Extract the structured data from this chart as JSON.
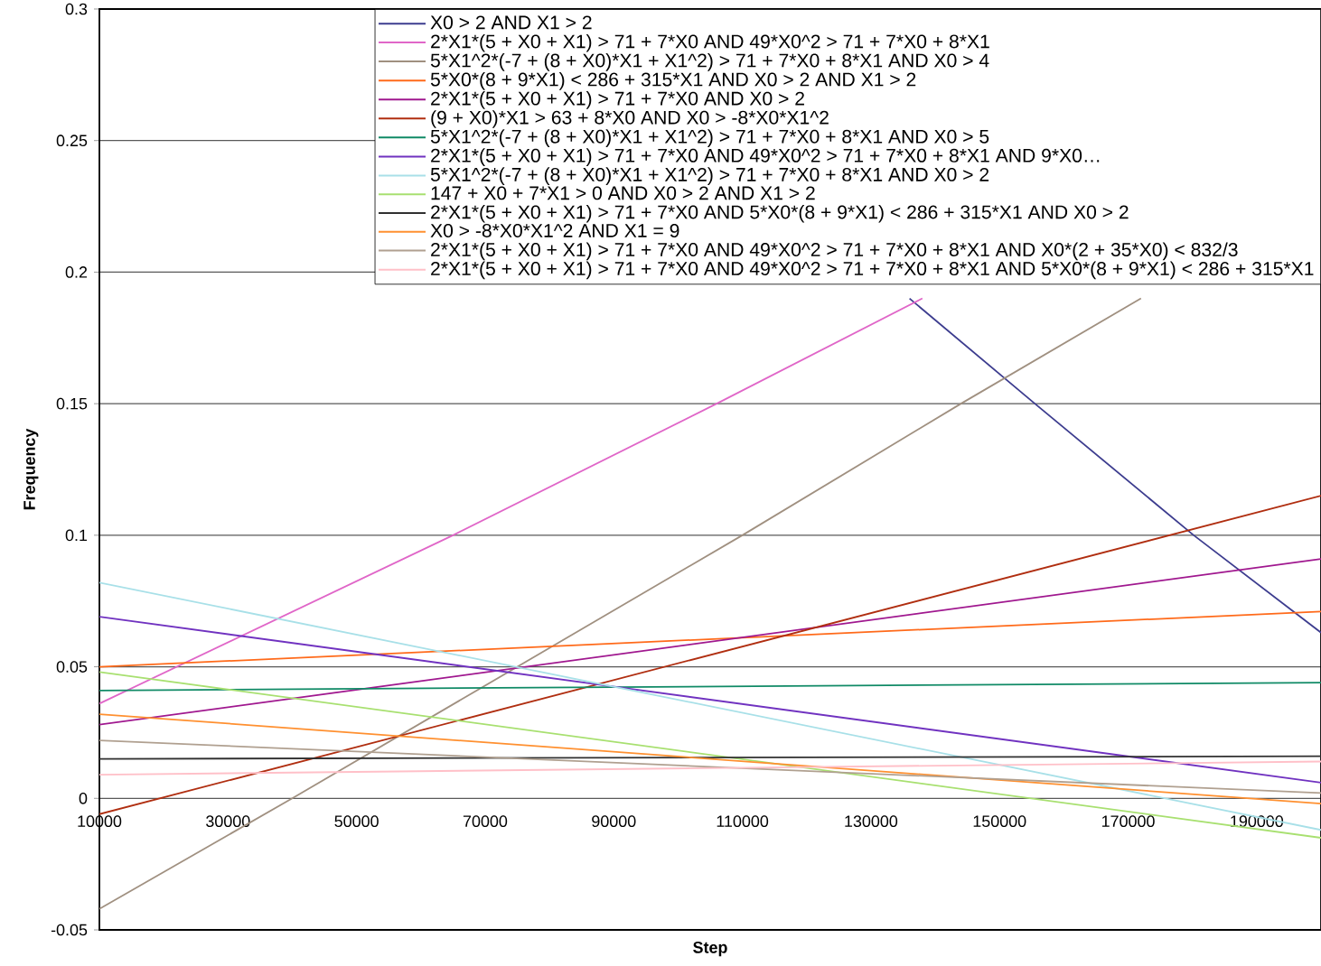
{
  "chart_data": {
    "type": "line",
    "xlabel": "Step",
    "ylabel": "Frequency",
    "xlim": [
      10000,
      200000
    ],
    "ylim": [
      -0.05,
      0.3
    ],
    "xticks": [
      10000,
      30000,
      50000,
      70000,
      90000,
      110000,
      130000,
      150000,
      170000,
      190000
    ],
    "yticks": [
      -0.05,
      0,
      0.05,
      0.1,
      0.15,
      0.2,
      0.25,
      0.3
    ],
    "grid": "y",
    "legend": "top right",
    "marker": "none",
    "line_style": "solid",
    "series": [
      {
        "name": "X0 > 2 AND X1 > 2",
        "color": "#3d3d8f",
        "x": [
          136000,
          155500,
          180200,
          200000
        ],
        "values": [
          0.19,
          0.15,
          0.1,
          0.063
        ]
      },
      {
        "name": "2*X1*(5 + X0 + X1) > 71 + 7*X0 AND 49*X0^2 > 71 + 7*X0 + 8*X1",
        "color": "#e066c8",
        "x": [
          10000,
          65000,
          106000,
          138000
        ],
        "values": [
          0.036,
          0.1,
          0.15,
          0.19
        ]
      },
      {
        "name": "5*X1^2*(-7 + (8 + X0)*X1 + X1^2) > 71 + 7*X0 + 8*X1 AND X0 > 4",
        "color": "#a09080",
        "x": [
          10000,
          40000,
          110000,
          144000,
          172000
        ],
        "values": [
          -0.042,
          0,
          0.1,
          0.15,
          0.19
        ]
      },
      {
        "name": "5*X0*(8 + 9*X1) < 286 + 315*X1 AND X0 > 2 AND X1 > 2",
        "color": "#ff6a1a",
        "x": [
          10000,
          200000
        ],
        "values": [
          0.05,
          0.071
        ]
      },
      {
        "name": "2*X1*(5 + X0 + X1) > 71 + 7*X0 AND X0 > 2",
        "color": "#a0188f",
        "x": [
          10000,
          200000
        ],
        "values": [
          0.028,
          0.091
        ]
      },
      {
        "name": "(9 + X0)*X1 > 63 + 8*X0 AND X0 > -8*X0*X1^2",
        "color": "#b02e10",
        "x": [
          10000,
          200000
        ],
        "values": [
          -0.006,
          0.115
        ]
      },
      {
        "name": "5*X1^2*(-7 + (8 + X0)*X1 + X1^2) > 71 + 7*X0 + 8*X1 AND X0 > 5",
        "color": "#108a66",
        "x": [
          10000,
          200000
        ],
        "values": [
          0.041,
          0.044
        ]
      },
      {
        "name": "2*X1*(5 + X0 + X1) > 71 + 7*X0 AND 49*X0^2 > 71 + 7*X0 + 8*X1 AND 9*X0…",
        "color": "#7032c0",
        "x": [
          10000,
          200000
        ],
        "values": [
          0.069,
          0.006
        ]
      },
      {
        "name": "5*X1^2*(-7 + (8 + X0)*X1 + X1^2) > 71 + 7*X0 + 8*X1 AND X0 > 2",
        "color": "#a8e0e8",
        "x": [
          10000,
          200000
        ],
        "values": [
          0.082,
          -0.012
        ]
      },
      {
        "name": "147 + X0 + 7*X1 > 0 AND X0 > 2 AND X1 > 2",
        "color": "#a8e070",
        "x": [
          10000,
          200000
        ],
        "values": [
          0.048,
          -0.015
        ]
      },
      {
        "name": "2*X1*(5 + X0 + X1) > 71 + 7*X0 AND 5*X0*(8 + 9*X1) < 286 + 315*X1 AND X0 > 2",
        "color": "#303030",
        "x": [
          10000,
          200000
        ],
        "values": [
          0.015,
          0.016
        ]
      },
      {
        "name": "X0 > -8*X0*X1^2 AND X1 = 9",
        "color": "#ff9030",
        "x": [
          10000,
          200000
        ],
        "values": [
          0.032,
          -0.002
        ]
      },
      {
        "name": "2*X1*(5 + X0 + X1) > 71 + 7*X0 AND 49*X0^2 > 71 + 7*X0 + 8*X1 AND X0*(2 + 35*X0) < 832/3",
        "color": "#b0a090",
        "x": [
          10000,
          200000
        ],
        "values": [
          0.022,
          0.002
        ]
      },
      {
        "name": "2*X1*(5 + X0 + X1) > 71 + 7*X0 AND 49*X0^2 > 71 + 7*X0 + 8*X1 AND 5*X0*(8 + 9*X1) < 286 + 315*X1",
        "color": "#ffc0c8",
        "x": [
          10000,
          200000
        ],
        "values": [
          0.009,
          0.014
        ]
      }
    ]
  }
}
